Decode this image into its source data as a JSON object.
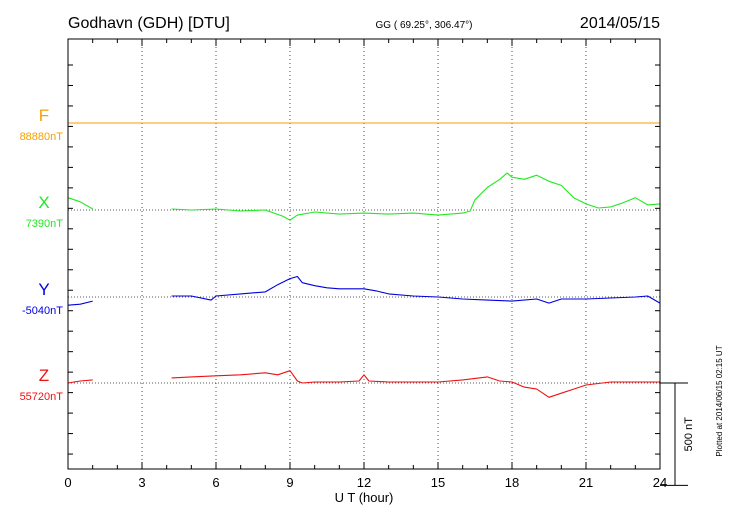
{
  "header": {
    "station": "Godhavn (GDH)  [DTU]",
    "coordinates": "GG ( 69.25°, 306.47°)",
    "date": "2014/05/15"
  },
  "footer": {
    "plotted": "Plotted at 2014/06/15 02:15 UT",
    "scale_label": "500 nT"
  },
  "chart_data": {
    "type": "line",
    "title": "Godhavn (GDH)  [DTU]",
    "xlabel": "U T (hour)",
    "ylabel": "",
    "xlim": [
      0,
      24
    ],
    "xticks": [
      0,
      3,
      6,
      9,
      12,
      15,
      18,
      21,
      24
    ],
    "xtick_labels": [
      "0",
      "3",
      "6",
      "9",
      "12",
      "15",
      "18",
      "21",
      "24"
    ],
    "grid": true,
    "scale_nT": 500,
    "panel_range_nT": 2100,
    "data_gap_hours": [
      1,
      4.2
    ],
    "series": [
      {
        "name": "F",
        "baseline_label": "88880nT",
        "baseline_nT": 88880,
        "color": "#f5a000",
        "points": [
          [
            0,
            0
          ],
          [
            24,
            0
          ]
        ]
      },
      {
        "name": "X",
        "baseline_label": "7390nT",
        "baseline_nT": 7390,
        "color": "#22e822",
        "points": [
          [
            0,
            60
          ],
          [
            0.5,
            40
          ],
          [
            1,
            5
          ],
          null,
          [
            4.2,
            5
          ],
          [
            5,
            0
          ],
          [
            6,
            5
          ],
          [
            7,
            -5
          ],
          [
            8,
            0
          ],
          [
            8.7,
            -30
          ],
          [
            9,
            -50
          ],
          [
            9.3,
            -25
          ],
          [
            10,
            -10
          ],
          [
            11,
            -20
          ],
          [
            12,
            -15
          ],
          [
            13,
            -20
          ],
          [
            14,
            -15
          ],
          [
            15,
            -25
          ],
          [
            16,
            -15
          ],
          [
            16.3,
            -5
          ],
          [
            16.5,
            50
          ],
          [
            17,
            110
          ],
          [
            17.5,
            150
          ],
          [
            17.8,
            180
          ],
          [
            18,
            160
          ],
          [
            18.5,
            150
          ],
          [
            19,
            170
          ],
          [
            19.5,
            140
          ],
          [
            20,
            120
          ],
          [
            20.5,
            60
          ],
          [
            21,
            30
          ],
          [
            21.5,
            10
          ],
          [
            22,
            15
          ],
          [
            22.5,
            35
          ],
          [
            23,
            60
          ],
          [
            23.5,
            25
          ],
          [
            24,
            30
          ]
        ]
      },
      {
        "name": "Y",
        "baseline_label": "-5040nT",
        "baseline_nT": -5040,
        "color": "#0000dd",
        "points": [
          [
            0,
            -40
          ],
          [
            0.5,
            -35
          ],
          [
            1,
            -20
          ],
          null,
          [
            4.2,
            5
          ],
          [
            5,
            5
          ],
          [
            5.8,
            -15
          ],
          [
            6,
            5
          ],
          [
            7,
            15
          ],
          [
            8,
            25
          ],
          [
            8.5,
            60
          ],
          [
            9,
            90
          ],
          [
            9.3,
            100
          ],
          [
            9.5,
            70
          ],
          [
            10,
            55
          ],
          [
            10.5,
            45
          ],
          [
            11,
            40
          ],
          [
            12,
            40
          ],
          [
            12.5,
            30
          ],
          [
            13,
            15
          ],
          [
            14,
            5
          ],
          [
            15,
            0
          ],
          [
            16,
            -10
          ],
          [
            17,
            -15
          ],
          [
            18,
            -20
          ],
          [
            19,
            -10
          ],
          [
            19.5,
            -30
          ],
          [
            20,
            -10
          ],
          [
            21,
            -10
          ],
          [
            22,
            -5
          ],
          [
            23,
            0
          ],
          [
            23.5,
            5
          ],
          [
            24,
            -30
          ]
        ]
      },
      {
        "name": "Z",
        "baseline_label": "55720nT",
        "baseline_nT": 55720,
        "color": "#ee1111",
        "points": [
          [
            0,
            0
          ],
          [
            0.5,
            10
          ],
          [
            1,
            15
          ],
          null,
          [
            4.2,
            25
          ],
          [
            5,
            30
          ],
          [
            6,
            35
          ],
          [
            7,
            40
          ],
          [
            8,
            50
          ],
          [
            8.5,
            40
          ],
          [
            9,
            60
          ],
          [
            9.3,
            10
          ],
          [
            9.5,
            0
          ],
          [
            10,
            5
          ],
          [
            11,
            5
          ],
          [
            11.8,
            10
          ],
          [
            12,
            40
          ],
          [
            12.2,
            10
          ],
          [
            13,
            5
          ],
          [
            14,
            5
          ],
          [
            15,
            5
          ],
          [
            16,
            15
          ],
          [
            17,
            30
          ],
          [
            17.5,
            10
          ],
          [
            18,
            5
          ],
          [
            18.5,
            -20
          ],
          [
            19,
            -30
          ],
          [
            19.5,
            -70
          ],
          [
            20,
            -50
          ],
          [
            20.5,
            -30
          ],
          [
            21,
            -10
          ],
          [
            22,
            5
          ],
          [
            23,
            5
          ],
          [
            24,
            5
          ]
        ]
      }
    ]
  }
}
